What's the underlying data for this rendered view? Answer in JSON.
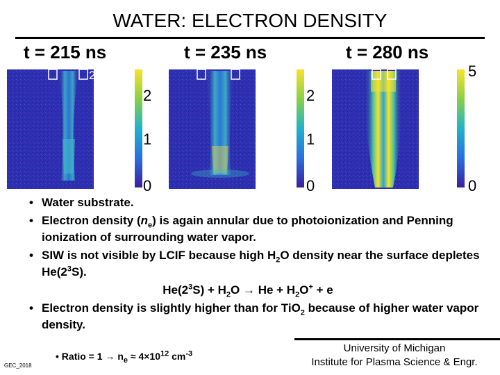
{
  "title": "WATER: ELECTRON DENSITY",
  "panels": [
    {
      "time": "t = 215 ns",
      "cbar_ticks": [
        "2",
        "1",
        "0"
      ]
    },
    {
      "time": "t = 235 ns",
      "cbar_ticks": [
        "2",
        "1",
        "0"
      ]
    },
    {
      "time": "t = 280 ns",
      "cbar_ticks": [
        "5",
        "0"
      ]
    }
  ],
  "scale_label": "2 mm",
  "bullets": {
    "b1": "Water substrate.",
    "b2_pre": "Electron density (",
    "b2_n": "n",
    "b2_sub": "e",
    "b2_post": ") is again annular due to photoionization and Penning ionization of surrounding water vapor.",
    "b3_pre": "SIW is not visible by LCIF because high H",
    "b3_sub": "2",
    "b3_mid": "O density near the surface depletes He(2",
    "b3_sup": "3",
    "b3_post": "S).",
    "eq_a": "He(2",
    "eq_sup1": "3",
    "eq_b": "S) + H",
    "eq_sub1": "2",
    "eq_c": "O → He + H",
    "eq_sub2": "2",
    "eq_d": "O",
    "eq_sup2": "+",
    "eq_e": " + e",
    "b4_pre": "Electron density is slightly higher than for TiO",
    "b4_sub": "2",
    "b4_post": " because of higher water vapor density."
  },
  "ratio": {
    "pre": "Ratio = 1 → n",
    "sub": "e",
    "mid": " ≈ 4×10",
    "sup": "12",
    "mid2": " cm",
    "sup2": "-3"
  },
  "footer": {
    "author": "GEC_2018",
    "line1": "University of Michigan",
    "line2": "Institute for Plasma Science & Engr."
  },
  "colors": {
    "bg_low": "#2b2aa8",
    "mid": "#1fb3c9",
    "high": "#f9e12a"
  }
}
